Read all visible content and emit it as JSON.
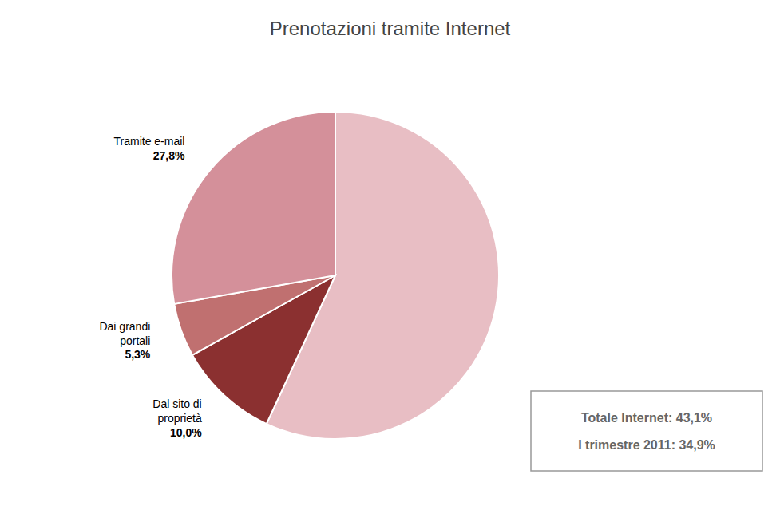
{
  "chart_data": {
    "type": "pie",
    "title": "Prenotazioni tramite Internet",
    "categories": [
      null,
      "Dal sito di\nproprietà",
      "Dai grandi\nportali",
      "Tramite e-mail"
    ],
    "values": [
      56.9,
      10.0,
      5.3,
      27.8
    ],
    "value_labels": [
      null,
      "10,0%",
      "5,3%",
      "27,8%"
    ],
    "colors": [
      "#E8BEC4",
      "#8B3030",
      "#C07070",
      "#D4909A"
    ],
    "data_labels": true,
    "annotations": [
      "Totale Internet: 43,1%",
      "I trimestre 2011: 34,9%"
    ]
  }
}
